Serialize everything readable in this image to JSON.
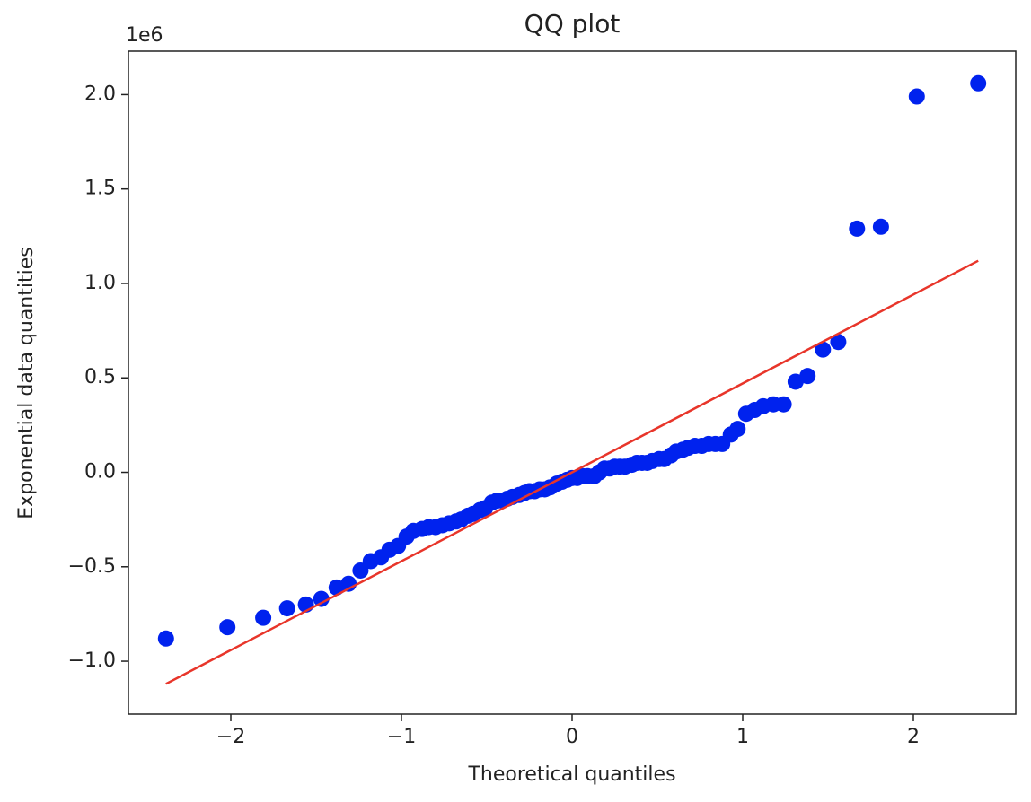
{
  "chart_data": {
    "type": "scatter",
    "title": "QQ plot",
    "x_label": "Theoretical quantiles",
    "y_label": "Exponential data quantities",
    "y_offset_label": "1e6",
    "xlim": [
      -2.6,
      2.6
    ],
    "ylim": [
      -1.28,
      2.23
    ],
    "xticks": [
      {
        "value": -2,
        "label": "−2"
      },
      {
        "value": -1,
        "label": "−1"
      },
      0,
      1,
      2
    ],
    "yticks": [
      {
        "value": -1,
        "label": "−1.0"
      },
      {
        "value": -0.5,
        "label": "−0.5"
      },
      {
        "value": 0,
        "label": "0.0"
      },
      0.5,
      {
        "value": 1,
        "label": "1.0"
      },
      1.5,
      {
        "value": 2,
        "label": "2.0"
      }
    ],
    "points": {
      "color": "#0022ee",
      "x": [
        -2.38,
        -2.02,
        -1.81,
        -1.67,
        -1.56,
        -1.47,
        -1.38,
        -1.31,
        -1.24,
        -1.18,
        -1.12,
        -1.07,
        -1.02,
        -0.97,
        -0.93,
        -0.88,
        -0.84,
        -0.8,
        -0.76,
        -0.72,
        -0.68,
        -0.65,
        -0.61,
        -0.58,
        -0.54,
        -0.51,
        -0.47,
        -0.44,
        -0.41,
        -0.38,
        -0.35,
        -0.31,
        -0.28,
        -0.25,
        -0.22,
        -0.19,
        -0.16,
        -0.13,
        -0.09,
        -0.06,
        -0.03,
        0.0,
        0.03,
        0.06,
        0.09,
        0.13,
        0.16,
        0.19,
        0.22,
        0.25,
        0.28,
        0.31,
        0.35,
        0.38,
        0.41,
        0.44,
        0.47,
        0.51,
        0.54,
        0.58,
        0.61,
        0.65,
        0.68,
        0.72,
        0.76,
        0.8,
        0.84,
        0.88,
        0.93,
        0.97,
        1.02,
        1.07,
        1.12,
        1.18,
        1.24,
        1.31,
        1.38,
        1.47,
        1.56,
        1.67,
        1.81,
        2.02,
        2.38
      ],
      "y": [
        -0.88,
        -0.82,
        -0.77,
        -0.72,
        -0.7,
        -0.67,
        -0.61,
        -0.59,
        -0.52,
        -0.47,
        -0.45,
        -0.41,
        -0.39,
        -0.34,
        -0.31,
        -0.3,
        -0.29,
        -0.29,
        -0.28,
        -0.27,
        -0.26,
        -0.25,
        -0.23,
        -0.22,
        -0.2,
        -0.19,
        -0.16,
        -0.15,
        -0.15,
        -0.14,
        -0.13,
        -0.12,
        -0.11,
        -0.1,
        -0.1,
        -0.09,
        -0.09,
        -0.08,
        -0.06,
        -0.05,
        -0.04,
        -0.03,
        -0.03,
        -0.02,
        -0.02,
        -0.02,
        0.0,
        0.02,
        0.02,
        0.03,
        0.03,
        0.03,
        0.04,
        0.05,
        0.05,
        0.05,
        0.06,
        0.07,
        0.07,
        0.09,
        0.11,
        0.12,
        0.13,
        0.14,
        0.14,
        0.15,
        0.15,
        0.15,
        0.2,
        0.23,
        0.31,
        0.33,
        0.35,
        0.36,
        0.36,
        0.48,
        0.51,
        0.65,
        0.69,
        1.29,
        1.3,
        1.99,
        2.06
      ]
    },
    "fit_line": {
      "color": "#e8352a",
      "x": [
        -2.38,
        2.38
      ],
      "y": [
        -1.12,
        1.12
      ]
    }
  }
}
